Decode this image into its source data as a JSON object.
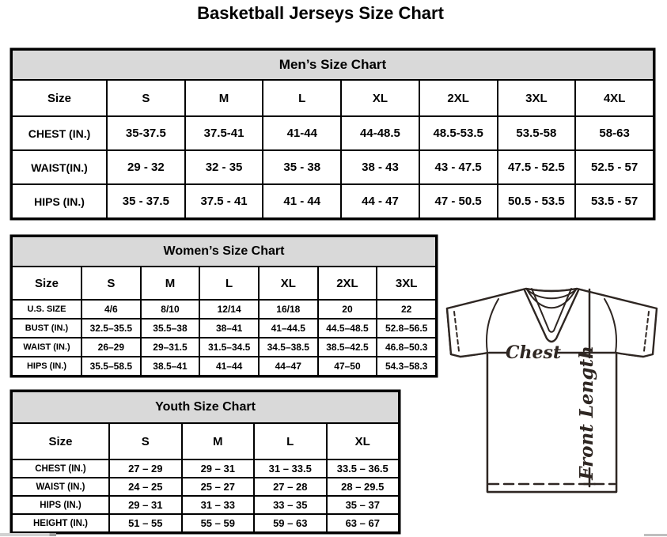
{
  "page_title": "Basketball Jerseys Size Chart",
  "tables": {
    "mens": {
      "title": "Men’s Size Chart",
      "columns": [
        "Size",
        "S",
        "M",
        "L",
        "XL",
        "2XL",
        "3XL",
        "4XL"
      ],
      "rows": [
        {
          "label": "CHEST (IN.)",
          "values": [
            "35-37.5",
            "37.5-41",
            "41-44",
            "44-48.5",
            "48.5-53.5",
            "53.5-58",
            "58-63"
          ]
        },
        {
          "label": "WAIST(IN.)",
          "values": [
            "29 - 32",
            "32 - 35",
            "35 - 38",
            "38 - 43",
            "43 - 47.5",
            "47.5 - 52.5",
            "52.5 - 57"
          ]
        },
        {
          "label": "HIPS (IN.)",
          "values": [
            "35 - 37.5",
            "37.5 - 41",
            "41 - 44",
            "44 - 47",
            "47 - 50.5",
            "50.5 - 53.5",
            "53.5 - 57"
          ]
        }
      ]
    },
    "womens": {
      "title": "Women’s Size Chart",
      "columns": [
        "Size",
        "S",
        "M",
        "L",
        "XL",
        "2XL",
        "3XL"
      ],
      "rows": [
        {
          "label": "U.S. SIZE",
          "values": [
            "4/6",
            "8/10",
            "12/14",
            "16/18",
            "20",
            "22"
          ]
        },
        {
          "label": "BUST (IN.)",
          "values": [
            "32.5–35.5",
            "35.5–38",
            "38–41",
            "41–44.5",
            "44.5–48.5",
            "52.8–56.5"
          ]
        },
        {
          "label": "WAIST (IN.)",
          "values": [
            "26–29",
            "29–31.5",
            "31.5–34.5",
            "34.5–38.5",
            "38.5–42.5",
            "46.8–50.3"
          ]
        },
        {
          "label": "HIPS (IN.)",
          "values": [
            "35.5–58.5",
            "38.5–41",
            "41–44",
            "44–47",
            "47–50",
            "54.3–58.3"
          ]
        }
      ]
    },
    "youth": {
      "title": "Youth Size Chart",
      "columns": [
        "Size",
        "S",
        "M",
        "L",
        "XL"
      ],
      "rows": [
        {
          "label": "CHEST (IN.)",
          "values": [
            "27 – 29",
            "29 – 31",
            "31 – 33.5",
            "33.5 – 36.5"
          ]
        },
        {
          "label": "WAIST (IN.)",
          "values": [
            "24 – 25",
            "25 – 27",
            "27 – 28",
            "28 – 29.5"
          ]
        },
        {
          "label": "HIPS (IN.)",
          "values": [
            "29 – 31",
            "31 – 33",
            "33 – 35",
            "35 – 37"
          ]
        },
        {
          "label": "HEIGHT (IN.)",
          "values": [
            "51 – 55",
            "55 – 59",
            "59 – 63",
            "63 – 67"
          ]
        }
      ]
    }
  },
  "diagram": {
    "chest_label": "Chest",
    "front_length_label": "Front Length"
  },
  "colors": {
    "table_band_bg": "#d9d9d9",
    "table_border": "#000000",
    "diagram_stroke": "#2e2622"
  }
}
